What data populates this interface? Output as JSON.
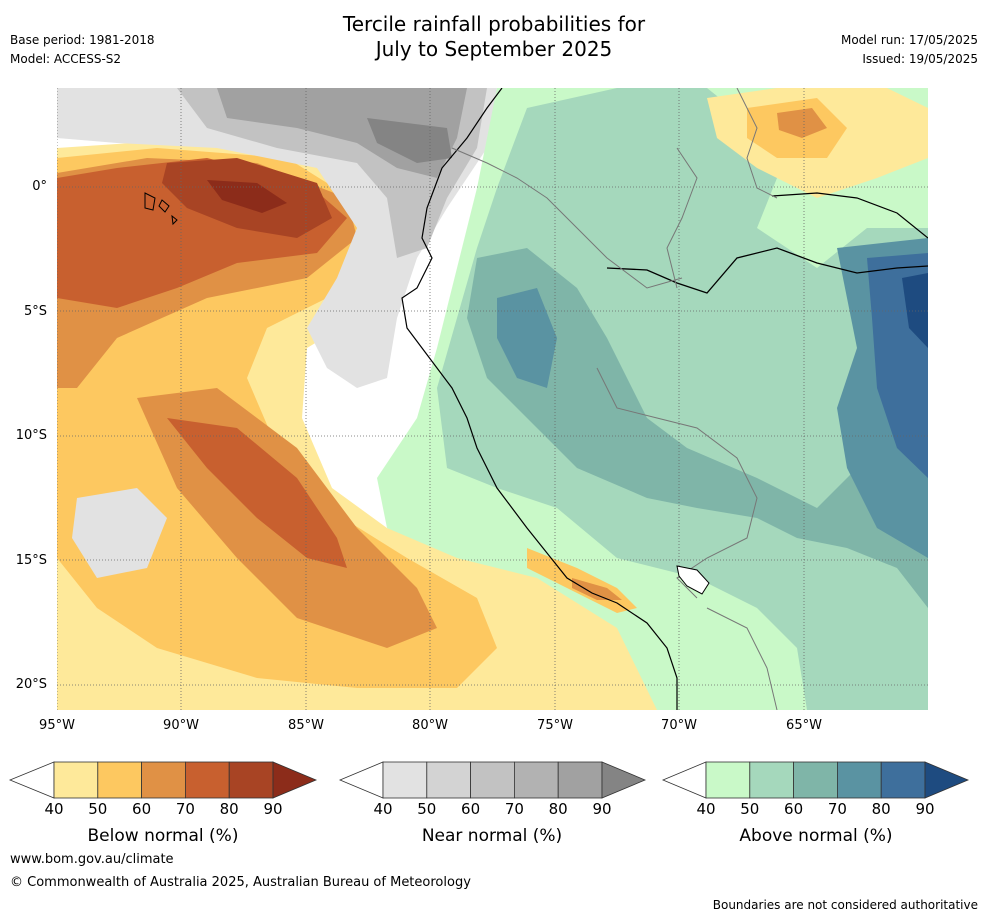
{
  "header": {
    "title_line1": "Tercile rainfall probabilities for",
    "title_line2": "July to September 2025",
    "base_period": "Base period: 1981-2018",
    "model": "Model: ACCESS-S2",
    "model_run": "Model run: 17/05/2025",
    "issued": "Issued: 19/05/2025"
  },
  "map": {
    "lat_labels": [
      "0°",
      "5°S",
      "10°S",
      "15°S",
      "20°S"
    ],
    "lon_labels": [
      "95°W",
      "90°W",
      "85°W",
      "80°W",
      "75°W",
      "70°W",
      "65°W"
    ],
    "colors": {
      "below": [
        "#fee99a",
        "#fdc860",
        "#e09145",
        "#c8602f",
        "#a84424",
        "#8c2c1a"
      ],
      "near": [
        "#e2e2e2",
        "#d3d3d3",
        "#c2c2c2",
        "#b2b2b2",
        "#a1a1a1",
        "#848484"
      ],
      "above": [
        "#c9f9c8",
        "#a5d8bc",
        "#7fb5a8",
        "#5a93a2",
        "#3e6f9c",
        "#1e4b80"
      ]
    }
  },
  "colorbars": [
    {
      "label": "Below normal (%)",
      "ticks": [
        "40",
        "50",
        "60",
        "70",
        "80",
        "90"
      ]
    },
    {
      "label": "Near normal (%)",
      "ticks": [
        "40",
        "50",
        "60",
        "70",
        "80",
        "90"
      ]
    },
    {
      "label": "Above normal (%)",
      "ticks": [
        "40",
        "50",
        "60",
        "70",
        "80",
        "90"
      ]
    }
  ],
  "footer": {
    "website": "www.bom.gov.au/climate",
    "copyright": "© Commonwealth of Australia 2025, Australian Bureau of Meteorology",
    "disclaimer": "Boundaries are not considered authoritative"
  }
}
